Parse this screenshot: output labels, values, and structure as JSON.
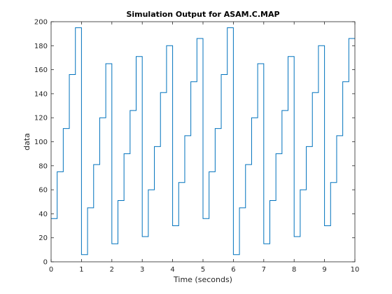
{
  "chart_data": {
    "type": "line",
    "step": true,
    "title": "Simulation Output for ASAM.C.MAP",
    "xlabel": "Time (seconds)",
    "ylabel": "data",
    "xlim": [
      0,
      10
    ],
    "ylim": [
      0,
      200
    ],
    "xticks": [
      0,
      1,
      2,
      3,
      4,
      5,
      6,
      7,
      8,
      9,
      10
    ],
    "yticks": [
      0,
      20,
      40,
      60,
      80,
      100,
      120,
      140,
      160,
      180,
      200
    ],
    "grid": false,
    "line_color": "#0072BD",
    "series": [
      {
        "x": [
          0,
          0.2,
          0.4,
          0.6,
          0.8,
          1.0,
          1.2,
          1.4,
          1.6,
          1.8,
          2.0,
          2.2,
          2.4,
          2.6,
          2.8,
          3.0,
          3.2,
          3.4,
          3.6,
          3.8,
          4.0,
          4.2,
          4.4,
          4.6,
          4.8,
          5.0,
          5.2,
          5.4,
          5.6,
          5.8,
          6.0,
          6.2,
          6.4,
          6.6,
          6.8,
          7.0,
          7.2,
          7.4,
          7.6,
          7.8,
          8.0,
          8.2,
          8.4,
          8.6,
          8.8,
          9.0,
          9.2,
          9.4,
          9.6,
          9.8
        ],
        "values": [
          36,
          75,
          111,
          156,
          195,
          6,
          45,
          81,
          120,
          165,
          15,
          51,
          90,
          126,
          171,
          21,
          60,
          96,
          141,
          180,
          30,
          66,
          105,
          150,
          186,
          36,
          75,
          111,
          156,
          195,
          6,
          45,
          81,
          120,
          165,
          15,
          51,
          90,
          126,
          171,
          21,
          60,
          96,
          141,
          180,
          30,
          66,
          105,
          150,
          186
        ]
      }
    ]
  }
}
